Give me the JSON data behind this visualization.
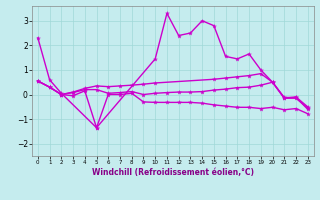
{
  "xlabel": "Windchill (Refroidissement éolien,°C)",
  "bg_color": "#c5ecee",
  "line_color": "#cc00cc",
  "grid_color": "#a0d8d8",
  "xlim_min": -0.5,
  "xlim_max": 23.5,
  "ylim_min": -2.5,
  "ylim_max": 3.6,
  "yticks": [
    -2,
    -1,
    0,
    1,
    2,
    3
  ],
  "xticks": [
    0,
    1,
    2,
    3,
    4,
    5,
    6,
    7,
    8,
    9,
    10,
    11,
    12,
    13,
    14,
    15,
    16,
    17,
    18,
    19,
    20,
    21,
    22,
    23
  ],
  "line1_x": [
    0,
    1,
    2,
    5,
    10,
    11,
    12,
    13,
    14,
    15,
    16,
    17,
    18,
    19,
    20,
    21,
    22,
    23
  ],
  "line1_y": [
    2.3,
    0.6,
    0.05,
    -1.35,
    1.45,
    3.3,
    2.4,
    2.5,
    3.0,
    2.8,
    1.55,
    1.45,
    1.65,
    1.0,
    0.5,
    -0.15,
    -0.15,
    -0.55
  ],
  "line2_x": [
    0,
    1,
    2,
    3,
    4,
    5,
    6,
    7,
    8,
    9,
    10,
    15,
    16,
    17,
    18,
    19,
    20,
    21,
    22,
    23
  ],
  "line2_y": [
    0.55,
    0.3,
    0.0,
    0.1,
    0.25,
    0.35,
    0.32,
    0.35,
    0.38,
    0.42,
    0.47,
    0.62,
    0.67,
    0.72,
    0.77,
    0.85,
    0.5,
    -0.12,
    -0.12,
    -0.6
  ],
  "line3_x": [
    0,
    1,
    2,
    3,
    4,
    5,
    6,
    7,
    8,
    9,
    10,
    11,
    12,
    13,
    14,
    15,
    16,
    17,
    18,
    19,
    20,
    21,
    22,
    23
  ],
  "line3_y": [
    0.55,
    0.3,
    0.0,
    0.08,
    0.2,
    0.2,
    0.05,
    0.08,
    0.12,
    0.0,
    0.05,
    0.08,
    0.1,
    0.1,
    0.12,
    0.18,
    0.22,
    0.28,
    0.3,
    0.38,
    0.5,
    -0.15,
    -0.1,
    -0.5
  ],
  "line4_x": [
    0,
    1,
    2,
    3,
    4,
    5,
    6,
    7,
    8,
    9,
    10,
    11,
    12,
    13,
    14,
    15,
    16,
    17,
    18,
    19,
    20,
    21,
    22,
    23
  ],
  "line4_y": [
    0.55,
    0.3,
    0.0,
    -0.05,
    0.15,
    -1.35,
    0.0,
    0.0,
    0.05,
    -0.3,
    -0.32,
    -0.32,
    -0.32,
    -0.32,
    -0.35,
    -0.42,
    -0.47,
    -0.52,
    -0.52,
    -0.57,
    -0.52,
    -0.62,
    -0.57,
    -0.78
  ]
}
